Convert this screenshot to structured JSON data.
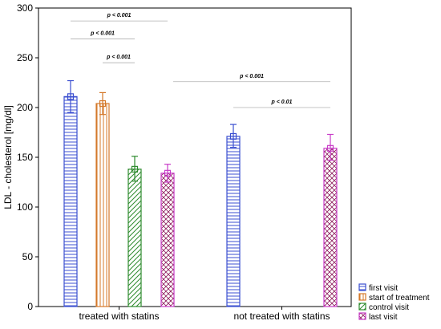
{
  "chart_data": {
    "type": "bar",
    "ylabel": "LDL - cholesterol [mg/dl]",
    "xlabel": "",
    "ylim": [
      0,
      300
    ],
    "yticks": [
      0,
      50,
      100,
      150,
      200,
      250,
      300
    ],
    "grid": false,
    "legend_position": "bottom-right",
    "categories": [
      "treated with statins",
      "not treated with statins"
    ],
    "series": [
      {
        "name": "first visit",
        "color": "#3b4fd0",
        "hatch": "horizontal",
        "values": [
          211,
          171
        ],
        "errors": [
          [
            195,
            227
          ],
          [
            160,
            183
          ]
        ]
      },
      {
        "name": "start of treatment",
        "color": "#d4782a",
        "hatch": "vertical",
        "values": [
          204,
          null
        ],
        "errors": [
          [
            193,
            215
          ],
          null
        ]
      },
      {
        "name": "control visit",
        "color": "#2e8b2e",
        "hatch": "diagonal",
        "values": [
          138,
          null
        ],
        "errors": [
          [
            126,
            151
          ],
          null
        ]
      },
      {
        "name": "last visit",
        "color": "#c83cc8",
        "hatch": "crosshatch",
        "values": [
          134,
          159
        ],
        "errors": [
          [
            125,
            143
          ],
          [
            147,
            173
          ]
        ]
      }
    ],
    "annotations": [
      {
        "text": "p < 0.001",
        "group": 0,
        "from_series": 0,
        "to_series": 3,
        "y": 287
      },
      {
        "text": "p < 0.001",
        "group": 0,
        "from_series": 0,
        "to_series": 2,
        "y": 269
      },
      {
        "text": "p < 0.001",
        "group": 0,
        "from_series": 1,
        "to_series": 2,
        "y": 245
      },
      {
        "text": "p < 0.001",
        "group": "across",
        "from_series": 0,
        "to_series": 3,
        "y": 226
      },
      {
        "text": "p < 0.01",
        "group": 1,
        "from_series": 0,
        "to_series": 3,
        "y": 200
      }
    ]
  }
}
